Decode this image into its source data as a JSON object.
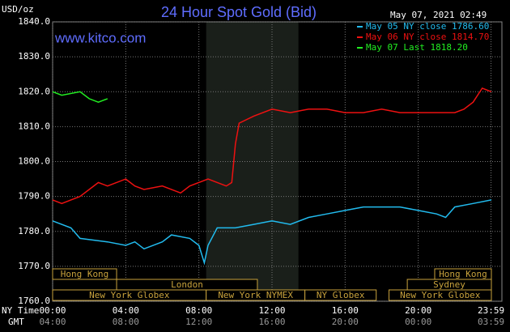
{
  "chart_data": {
    "type": "line",
    "title": "24 Hour Spot Gold (Bid)",
    "site": "www.kitco.com",
    "timestamp": "May 07, 2021 02:49",
    "y_label": "USD/oz",
    "x_label_ny": "NY Time",
    "x_label_gmt": "GMT",
    "xlim": [
      0,
      24
    ],
    "xticks": [
      {
        "value": 0,
        "label": "00:00"
      },
      {
        "value": 4,
        "label": "04:00"
      },
      {
        "value": 8,
        "label": "08:00"
      },
      {
        "value": 12,
        "label": "12:00"
      },
      {
        "value": 16,
        "label": "16:00"
      },
      {
        "value": 20,
        "label": "20:00"
      },
      {
        "value": 23.98,
        "label": "23:59"
      }
    ],
    "xtick_gmt_labels": [
      "04:00",
      "08:00",
      "12:00",
      "16:00",
      "20:00",
      "00:00",
      "03:59"
    ],
    "ylim": [
      1760,
      1840
    ],
    "yticks": [
      {
        "value": 1760,
        "label": "1760.0"
      },
      {
        "value": 1770,
        "label": "1770.0"
      },
      {
        "value": 1780,
        "label": "1780.0"
      },
      {
        "value": 1790,
        "label": "1790.0"
      },
      {
        "value": 1800,
        "label": "1800.0"
      },
      {
        "value": 1810,
        "label": "1810.0"
      },
      {
        "value": 1820,
        "label": "1820.0"
      },
      {
        "value": 1830,
        "label": "1830.0"
      },
      {
        "value": 1840,
        "label": "1840.0"
      }
    ],
    "grid": true,
    "series": [
      {
        "name": "May 05 NY close 1786.60",
        "color": "#22bbee",
        "x": [
          0,
          1,
          1.5,
          3,
          4,
          4.5,
          5,
          6,
          6.5,
          7.5,
          8,
          8.3,
          8.5,
          9,
          10,
          11,
          12,
          13,
          14,
          15,
          16,
          17,
          18,
          19,
          20,
          21,
          21.5,
          22,
          23,
          24
        ],
        "values": [
          1783,
          1781,
          1778,
          1777,
          1776,
          1777,
          1775,
          1777,
          1779,
          1778,
          1776,
          1771,
          1776,
          1781,
          1781,
          1782,
          1783,
          1782,
          1784,
          1785,
          1786,
          1787,
          1787,
          1787,
          1786,
          1785,
          1784,
          1787,
          1788,
          1789
        ]
      },
      {
        "name": "May 06 NY close 1814.70",
        "color": "#ee1111",
        "x": [
          0,
          0.5,
          1.5,
          2.5,
          3,
          4,
          4.5,
          5,
          6,
          7,
          7.5,
          8.5,
          9.5,
          9.8,
          10,
          10.2,
          11,
          12,
          13,
          14,
          15,
          16,
          17,
          18,
          19,
          20,
          21,
          22,
          22.5,
          23,
          23.5,
          24
        ],
        "values": [
          1789,
          1788,
          1790,
          1794,
          1793,
          1795,
          1793,
          1792,
          1793,
          1791,
          1793,
          1795,
          1793,
          1794,
          1805,
          1811,
          1813,
          1815,
          1814,
          1815,
          1815,
          1814,
          1814,
          1815,
          1814,
          1814,
          1814,
          1814,
          1815,
          1817,
          1821,
          1820
        ]
      },
      {
        "name": "May 07 Last 1818.20",
        "color": "#22ee22",
        "x": [
          0,
          0.5,
          1.5,
          2,
          2.5,
          3
        ],
        "values": [
          1820,
          1819,
          1820,
          1818,
          1817,
          1818
        ]
      }
    ],
    "sessions": [
      {
        "label": "Hong Kong",
        "start": 0,
        "end": 3.5,
        "row": 0
      },
      {
        "label": "Hong Kong",
        "start": 20.9,
        "end": 24,
        "row": 0
      },
      {
        "label": "London",
        "start": 3.5,
        "end": 11.2,
        "row": 1
      },
      {
        "label": "Sydney",
        "start": 19.4,
        "end": 24,
        "row": 1
      },
      {
        "label": "New York Globex",
        "start": 0,
        "end": 8.4,
        "row": 2
      },
      {
        "label": "New York NYMEX",
        "start": 8.4,
        "end": 13.8,
        "row": 2
      },
      {
        "label": "NY Globex",
        "start": 13.8,
        "end": 17.7,
        "row": 2
      },
      {
        "label": "New York Globex",
        "start": 18.4,
        "end": 24,
        "row": 2
      }
    ]
  }
}
